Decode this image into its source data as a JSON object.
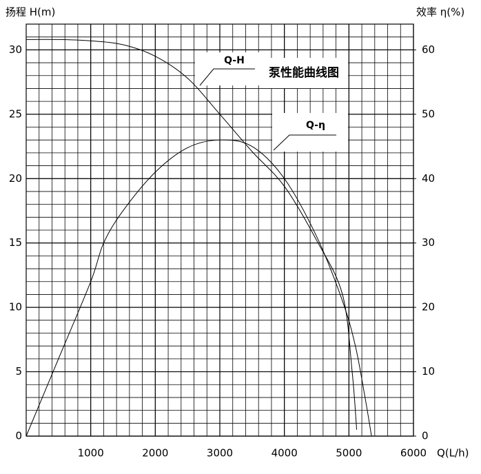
{
  "chart_data": {
    "type": "line",
    "title": "泵性能曲线图",
    "y_label": "扬程 H(m)",
    "y2_label": "效率 η(%)",
    "x_label": "Q(L/h)",
    "xlim": [
      0,
      6000
    ],
    "xticks": [
      1000,
      2000,
      3000,
      4000,
      5000,
      6000
    ],
    "ylim": [
      0,
      32
    ],
    "yticks": [
      0,
      5,
      10,
      15,
      20,
      25,
      30
    ],
    "y2lim": [
      0,
      64
    ],
    "y2ticks": [
      0,
      10,
      20,
      30,
      40,
      50,
      60
    ],
    "grid": true,
    "series": [
      {
        "name": "Q-H",
        "color": "#000000",
        "x": [
          0,
          500,
          1000,
          1500,
          2000,
          2500,
          3000,
          3500,
          4000,
          4500,
          4900,
          5050,
          5120
        ],
        "values": [
          30.8,
          30.8,
          30.7,
          30.4,
          29.5,
          27.8,
          25,
          22.1,
          19.4,
          15.2,
          11,
          5,
          0.5
        ]
      },
      {
        "name": "Q-η",
        "color": "#000000",
        "axis": "y2",
        "x": [
          0,
          500,
          1000,
          1200,
          1500,
          2000,
          2500,
          3000,
          3500,
          4000,
          4500,
          4900,
          5100,
          5250,
          5350
        ],
        "values": [
          0,
          12,
          24,
          30,
          35,
          41,
          44.8,
          46,
          45,
          40,
          31,
          21,
          14,
          6,
          0
        ]
      }
    ]
  }
}
